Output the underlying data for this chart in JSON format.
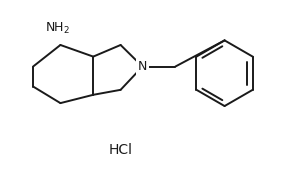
{
  "bg_color": "#ffffff",
  "line_color": "#1a1a1a",
  "text_color": "#1a1a1a",
  "line_width": 1.4,
  "font_size": 9,
  "hcl_font_size": 10,
  "fig_width": 2.85,
  "fig_height": 1.73,
  "dpi": 100
}
